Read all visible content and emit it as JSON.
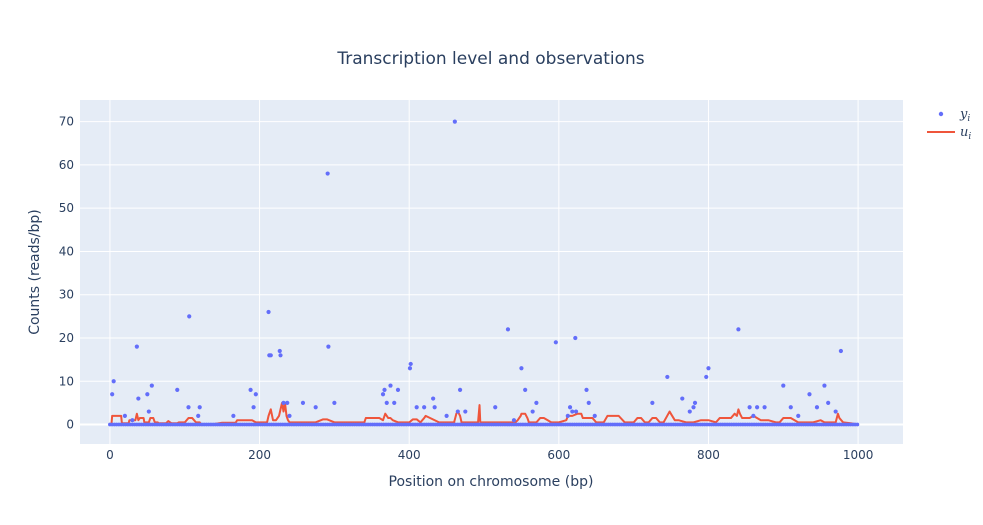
{
  "chart_data": {
    "type": "scatter",
    "title": "Transcription level and observations",
    "xlabel": "Position on chromosome (bp)",
    "ylabel": "Counts (reads/bp)",
    "xlim": [
      -40,
      1060
    ],
    "ylim": [
      -4.5,
      75
    ],
    "x_ticks": [
      0,
      200,
      400,
      600,
      800,
      1000
    ],
    "y_ticks": [
      0,
      10,
      20,
      30,
      40,
      50,
      60,
      70
    ],
    "grid": true,
    "legend_position": "top-right",
    "plot_bgcolor": "#e5ecf6",
    "series": [
      {
        "name": "y_i",
        "legend_main": "y",
        "legend_sub": "i",
        "mode": "markers",
        "color": "#636efa",
        "x": [
          3,
          5,
          20,
          30,
          36,
          38,
          50,
          52,
          56,
          90,
          105,
          106,
          118,
          120,
          165,
          188,
          192,
          195,
          212,
          213,
          215,
          227,
          228,
          232,
          237,
          240,
          258,
          275,
          291,
          292,
          300,
          365,
          367,
          370,
          375,
          380,
          385,
          401,
          402,
          410,
          420,
          432,
          434,
          450,
          461,
          465,
          468,
          475,
          515,
          532,
          540,
          550,
          555,
          565,
          570,
          596,
          612,
          615,
          618,
          622,
          623,
          637,
          640,
          648,
          725,
          745,
          765,
          775,
          780,
          782,
          797,
          800,
          840,
          855,
          860,
          865,
          875,
          900,
          910,
          920,
          935,
          945,
          955,
          960,
          970,
          977
        ],
        "y": [
          7,
          10,
          2,
          1,
          18,
          6,
          7,
          3,
          9,
          8,
          4,
          25,
          2,
          4,
          2,
          8,
          4,
          7,
          26,
          16,
          16,
          17,
          16,
          5,
          5,
          2,
          5,
          4,
          58,
          18,
          5,
          7,
          8,
          5,
          9,
          5,
          8,
          13,
          14,
          4,
          4,
          6,
          4,
          2,
          70,
          3,
          8,
          3,
          4,
          22,
          1,
          13,
          8,
          3,
          5,
          19,
          2,
          4,
          3,
          20,
          3,
          8,
          5,
          2,
          5,
          11,
          6,
          3,
          4,
          5,
          11,
          13,
          22,
          4,
          2,
          4,
          4,
          9,
          4,
          2,
          7,
          4,
          9,
          5,
          3,
          17
        ]
      },
      {
        "name": "u_i",
        "legend_main": "u",
        "legend_sub": "i",
        "mode": "lines",
        "color": "#ef553b",
        "x": [
          0,
          2,
          3,
          15,
          16,
          25,
          26,
          34,
          36,
          38,
          40,
          45,
          46,
          52,
          54,
          58,
          60,
          64,
          65,
          75,
          78,
          82,
          90,
          92,
          100,
          105,
          110,
          115,
          120,
          122,
          135,
          150,
          160,
          168,
          170,
          190,
          195,
          200,
          210,
          212,
          215,
          218,
          222,
          226,
          230,
          232,
          234,
          236,
          238,
          240,
          250,
          275,
          285,
          290,
          300,
          320,
          340,
          342,
          360,
          365,
          368,
          372,
          375,
          378,
          385,
          400,
          405,
          410,
          415,
          420,
          422,
          440,
          460,
          463,
          465,
          468,
          470,
          480,
          492,
          494,
          495,
          510,
          520,
          530,
          542,
          545,
          549,
          550,
          555,
          558,
          560,
          570,
          575,
          580,
          590,
          600,
          610,
          612,
          618,
          625,
          630,
          632,
          645,
          650,
          660,
          665,
          680,
          688,
          690,
          700,
          705,
          710,
          715,
          720,
          725,
          730,
          735,
          740,
          748,
          755,
          760,
          770,
          780,
          790,
          800,
          810,
          815,
          820,
          830,
          835,
          838,
          840,
          842,
          845,
          850,
          855,
          860,
          870,
          880,
          890,
          895,
          900,
          910,
          920,
          930,
          940,
          950,
          955,
          960,
          965,
          970,
          973,
          975,
          980,
          990,
          1000
        ],
        "y": [
          0,
          0,
          2,
          2,
          0.3,
          0.3,
          1,
          1,
          2.5,
          1,
          1.5,
          1.5,
          0.5,
          0.5,
          1.5,
          1.5,
          0.5,
          0.5,
          0.3,
          0.3,
          0.8,
          0.3,
          0.3,
          0.5,
          0.5,
          1.5,
          1.5,
          0.5,
          0.5,
          0,
          0,
          0.4,
          0.4,
          0.4,
          1,
          1,
          0.5,
          0.5,
          0.5,
          2,
          3.5,
          1,
          1,
          2,
          5,
          3,
          5,
          2,
          1,
          0.5,
          0.5,
          0.5,
          1.2,
          1.2,
          0.5,
          0.5,
          0.5,
          1.5,
          1.5,
          1,
          2.5,
          1.5,
          1.5,
          1,
          0.5,
          0.5,
          1.2,
          1.2,
          0.5,
          1.5,
          2,
          0.5,
          0.5,
          2.5,
          3,
          2,
          0.5,
          0.5,
          0.5,
          4.5,
          0.5,
          0.5,
          0.5,
          0.5,
          0.5,
          1,
          2,
          2.5,
          2.5,
          1.5,
          0.5,
          0.5,
          1.5,
          1.5,
          0.5,
          0.5,
          1,
          2,
          2,
          2.5,
          2.5,
          1.5,
          1.5,
          0.5,
          0.5,
          2,
          2,
          0.5,
          0.5,
          0.5,
          1.5,
          1.5,
          0.5,
          0.5,
          1.5,
          1.5,
          0.5,
          0.5,
          3,
          1,
          1,
          0.5,
          0.5,
          1,
          1,
          0.5,
          1.5,
          1.5,
          1.5,
          2.5,
          2,
          3.5,
          2.5,
          1.5,
          1.5,
          1.5,
          2,
          1,
          1,
          0.5,
          0.5,
          1.5,
          1.5,
          0.5,
          0.5,
          0.5,
          1,
          0.5,
          0.5,
          0.5,
          0.5,
          2.5,
          1.5,
          0.5,
          0.3,
          0
        ]
      }
    ]
  }
}
